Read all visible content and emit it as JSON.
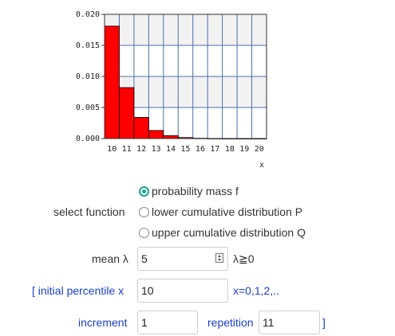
{
  "chart_data": {
    "type": "bar",
    "categories": [
      "10",
      "11",
      "12",
      "13",
      "14",
      "15",
      "16",
      "17",
      "18",
      "19",
      "20"
    ],
    "values": [
      0.0181,
      0.0082,
      0.0034,
      0.0013,
      0.00047,
      0.00016,
      5e-05,
      1.5e-05,
      4e-06,
      1e-06,
      3e-07
    ],
    "ylim": [
      0,
      0.02
    ],
    "yticks": [
      "0.000",
      "0.005",
      "0.010",
      "0.015",
      "0.020"
    ],
    "xlabel": "x",
    "ylabel": "",
    "grid": true,
    "colors": {
      "bar": "#ff0000",
      "grid": "#4c6fa5",
      "band": "#f2f2f2"
    }
  },
  "form": {
    "function_label": "select function",
    "options": [
      {
        "label": "probability mass f",
        "checked": true
      },
      {
        "label": "lower cumulative distribution P",
        "checked": false
      },
      {
        "label": "upper cumulative distribution Q",
        "checked": false
      }
    ],
    "mean_label": "mean λ",
    "mean_value": "5",
    "mean_hint": "λ≧0",
    "percentile_label": "[ initial percentile x",
    "percentile_value": "10",
    "percentile_hint": "x=0,1,2,..",
    "increment_label": "increment",
    "increment_value": "1",
    "repetition_label": "repetition",
    "repetition_value": "11",
    "close_bracket": "]"
  }
}
